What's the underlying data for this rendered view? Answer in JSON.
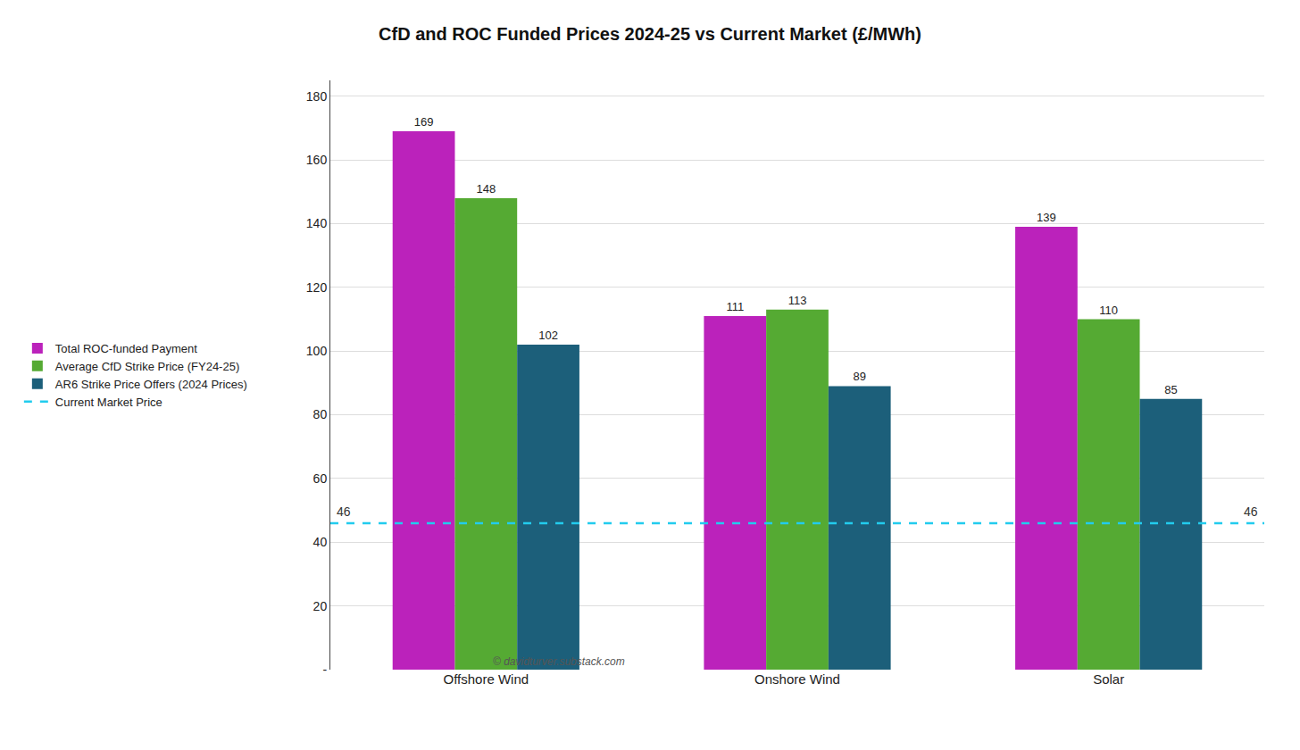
{
  "chart_data": {
    "type": "bar",
    "title": "CfD and ROC Funded Prices 2024-25 vs Current Market (£/MWh)",
    "categories": [
      "Offshore Wind",
      "Onshore Wind",
      "Solar"
    ],
    "series": [
      {
        "name": "Total ROC-funded Payment",
        "color": "#BB22BB",
        "values": [
          169,
          111,
          139
        ]
      },
      {
        "name": "Average CfD Strike Price (FY24-25)",
        "color": "#55AA33",
        "values": [
          148,
          113,
          110
        ]
      },
      {
        "name": "AR6 Strike Price Offers (2024 Prices)",
        "color": "#1C5F7A",
        "values": [
          102,
          89,
          85
        ]
      }
    ],
    "ylim": [
      0,
      185
    ],
    "yticks": [
      {
        "value": 0,
        "label": "-"
      },
      20,
      40,
      60,
      80,
      100,
      120,
      140,
      160,
      180
    ],
    "grid": true,
    "data_labels": true,
    "legend": "left",
    "reference_line": {
      "name": "Current Market Price",
      "value": 46,
      "color": "#22CCEE",
      "line_style": "dashed"
    },
    "annotations": [
      "© davidturver.substack.com"
    ]
  }
}
